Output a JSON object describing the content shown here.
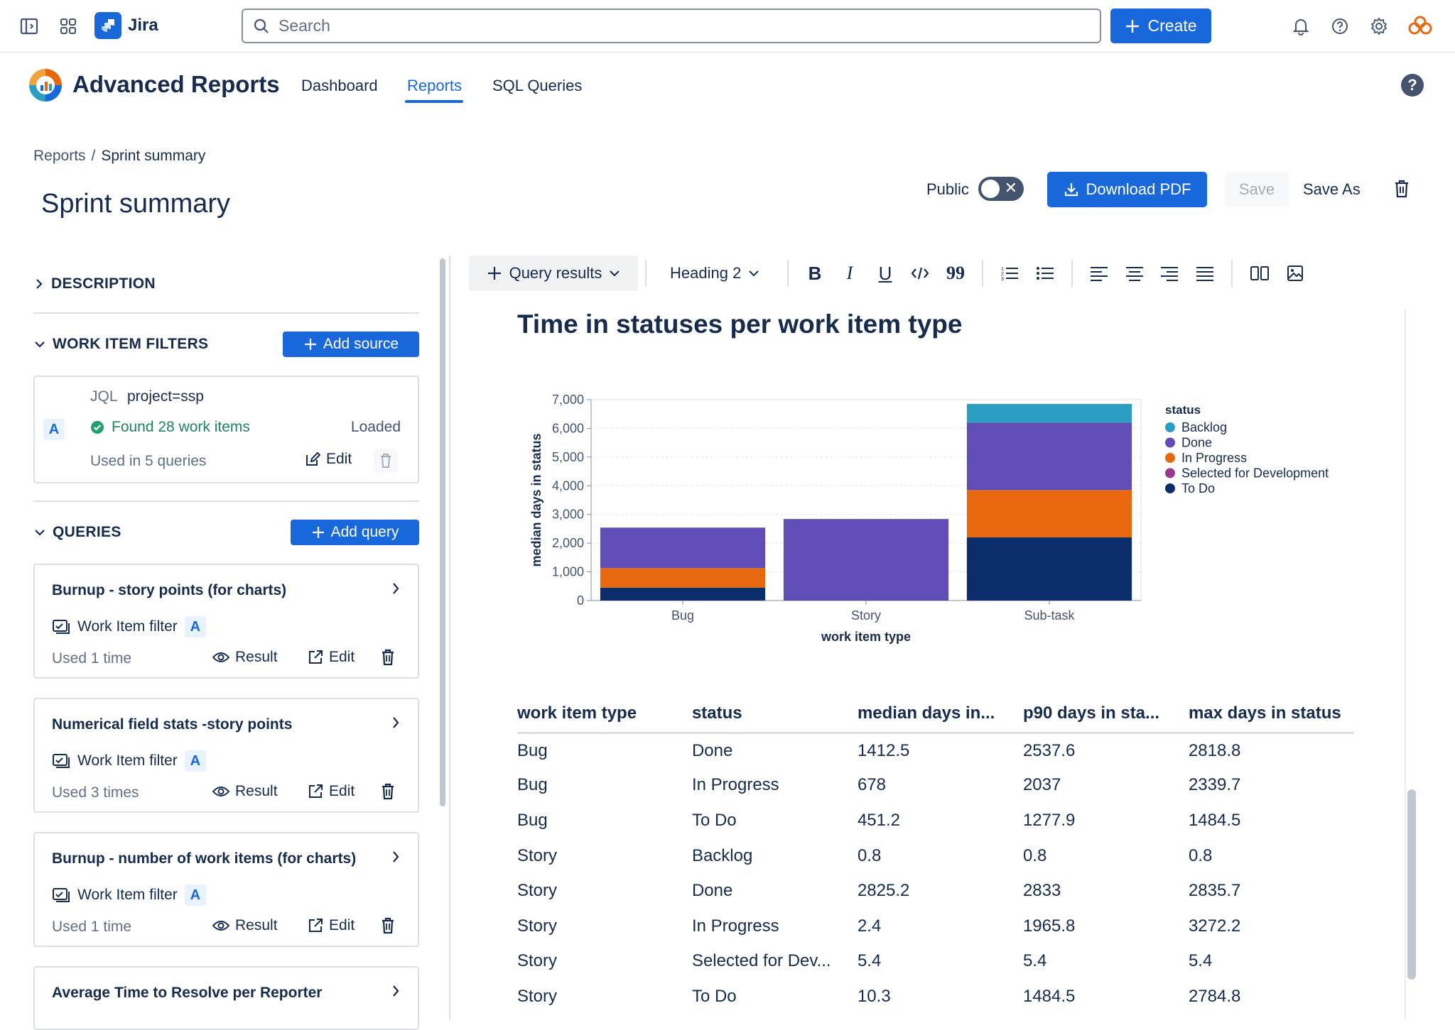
{
  "topbar": {
    "app_name": "Jira",
    "search_placeholder": "Search",
    "create_label": "Create"
  },
  "app_header": {
    "title": "Advanced Reports",
    "tabs": [
      {
        "label": "Dashboard",
        "active": false
      },
      {
        "label": "Reports",
        "active": true
      },
      {
        "label": "SQL Queries",
        "active": false
      }
    ],
    "help_label": "?"
  },
  "breadcrumb": {
    "root": "Reports",
    "separator": "/",
    "current": "Sprint summary"
  },
  "page": {
    "title": "Sprint summary",
    "public_label": "Public",
    "public_enabled": false,
    "download_label": "Download PDF",
    "save_label": "Save",
    "save_as_label": "Save As"
  },
  "left_panel": {
    "description_heading": "DESCRIPTION",
    "filters_heading": "WORK ITEM FILTERS",
    "add_source_label": "Add source",
    "filter": {
      "badge": "A",
      "type_label": "JQL",
      "query": "project=ssp",
      "found_text": "Found 28 work items",
      "state": "Loaded",
      "used_text": "Used in 5 queries",
      "edit_label": "Edit"
    },
    "queries_heading": "QUERIES",
    "add_query_label": "Add query",
    "queries": [
      {
        "title": "Burnup - story points (for charts)",
        "filter_label": "Work Item filter",
        "badge": "A",
        "used": "Used 1 time",
        "result_label": "Result",
        "edit_label": "Edit"
      },
      {
        "title": "Numerical field stats -story points",
        "filter_label": "Work Item filter",
        "badge": "A",
        "used": "Used 3 times",
        "result_label": "Result",
        "edit_label": "Edit"
      },
      {
        "title": "Burnup - number of work items (for charts)",
        "filter_label": "Work Item filter",
        "badge": "A",
        "used": "Used 1 time",
        "result_label": "Result",
        "edit_label": "Edit"
      },
      {
        "title": "Average Time to Resolve per Reporter"
      }
    ]
  },
  "toolbar": {
    "query_results_label": "Query results",
    "heading_label": "Heading 2"
  },
  "content": {
    "section_title": "Time in statuses per work item type"
  },
  "chart_data": {
    "type": "bar",
    "stacked": true,
    "categories": [
      "Bug",
      "Story",
      "Sub-task"
    ],
    "xlabel": "work item type",
    "ylabel": "median days in status",
    "ylim": [
      0,
      7000
    ],
    "yticks": [
      "0",
      "1,000",
      "2,000",
      "3,000",
      "4,000",
      "5,000",
      "6,000",
      "7,000"
    ],
    "legend_title": "status",
    "legend_position": "right",
    "grid": true,
    "series": [
      {
        "name": "To Do",
        "color": "#0b2e6b",
        "values": [
          451.2,
          10.3,
          2200
        ]
      },
      {
        "name": "In Progress",
        "color": "#e8680f",
        "values": [
          678,
          2.4,
          1650
        ]
      },
      {
        "name": "Done",
        "color": "#604db5",
        "values": [
          1412.5,
          2825.2,
          2350
        ]
      },
      {
        "name": "Selected for Development",
        "color": "#993a8f",
        "values": [
          0,
          5.4,
          0
        ]
      },
      {
        "name": "Backlog",
        "color": "#2a9fc2",
        "values": [
          0,
          0.8,
          650
        ]
      }
    ],
    "legend_order": [
      "Backlog",
      "Done",
      "In Progress",
      "Selected for Development",
      "To Do"
    ]
  },
  "table": {
    "columns": [
      "work item type",
      "status",
      "median days in...",
      "p90 days in sta...",
      "max days in status"
    ],
    "rows": [
      [
        "Bug",
        "Done",
        "1412.5",
        "2537.6",
        "2818.8"
      ],
      [
        "Bug",
        "In Progress",
        "678",
        "2037",
        "2339.7"
      ],
      [
        "Bug",
        "To Do",
        "451.2",
        "1277.9",
        "1484.5"
      ],
      [
        "Story",
        "Backlog",
        "0.8",
        "0.8",
        "0.8"
      ],
      [
        "Story",
        "Done",
        "2825.2",
        "2833",
        "2835.7"
      ],
      [
        "Story",
        "In Progress",
        "2.4",
        "1965.8",
        "3272.2"
      ],
      [
        "Story",
        "Selected for Dev...",
        "5.4",
        "5.4",
        "5.4"
      ],
      [
        "Story",
        "To Do",
        "10.3",
        "1484.5",
        "2784.8"
      ]
    ]
  }
}
